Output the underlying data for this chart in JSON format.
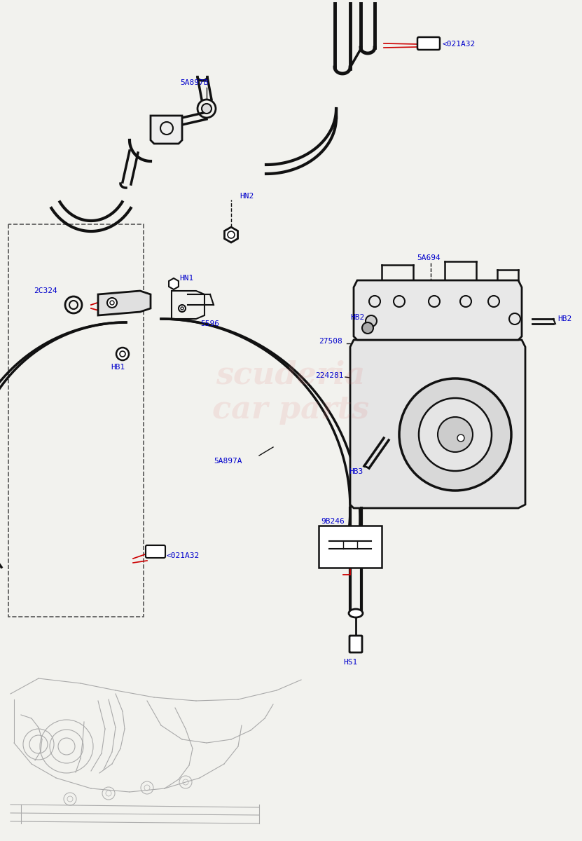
{
  "bg_color": "#f2f2ee",
  "watermark_text": "scuderia\ncar parts",
  "watermark_color": "#e08080",
  "watermark_alpha": 0.15,
  "labels": {
    "021A32_top": "<021A32",
    "5A897B": "5A897B",
    "HN2": "HN2",
    "2C324": "2C324",
    "HN1": "HN1",
    "HB1": "HB1",
    "5596": "5596",
    "5A694": "5A694",
    "HB2_left": "HB2",
    "HB2_right": "HB2",
    "27508": "27508",
    "224281": "224281",
    "HB3": "HB3",
    "5A897A": "5A897A",
    "021A32_bot": "<021A32",
    "9B246": "9B246",
    "HS1": "HS1"
  },
  "label_color": "#0000cc",
  "line_color": "#111111",
  "red_color": "#cc0000",
  "gray_color": "#aaaaaa",
  "dash_color": "#555555"
}
